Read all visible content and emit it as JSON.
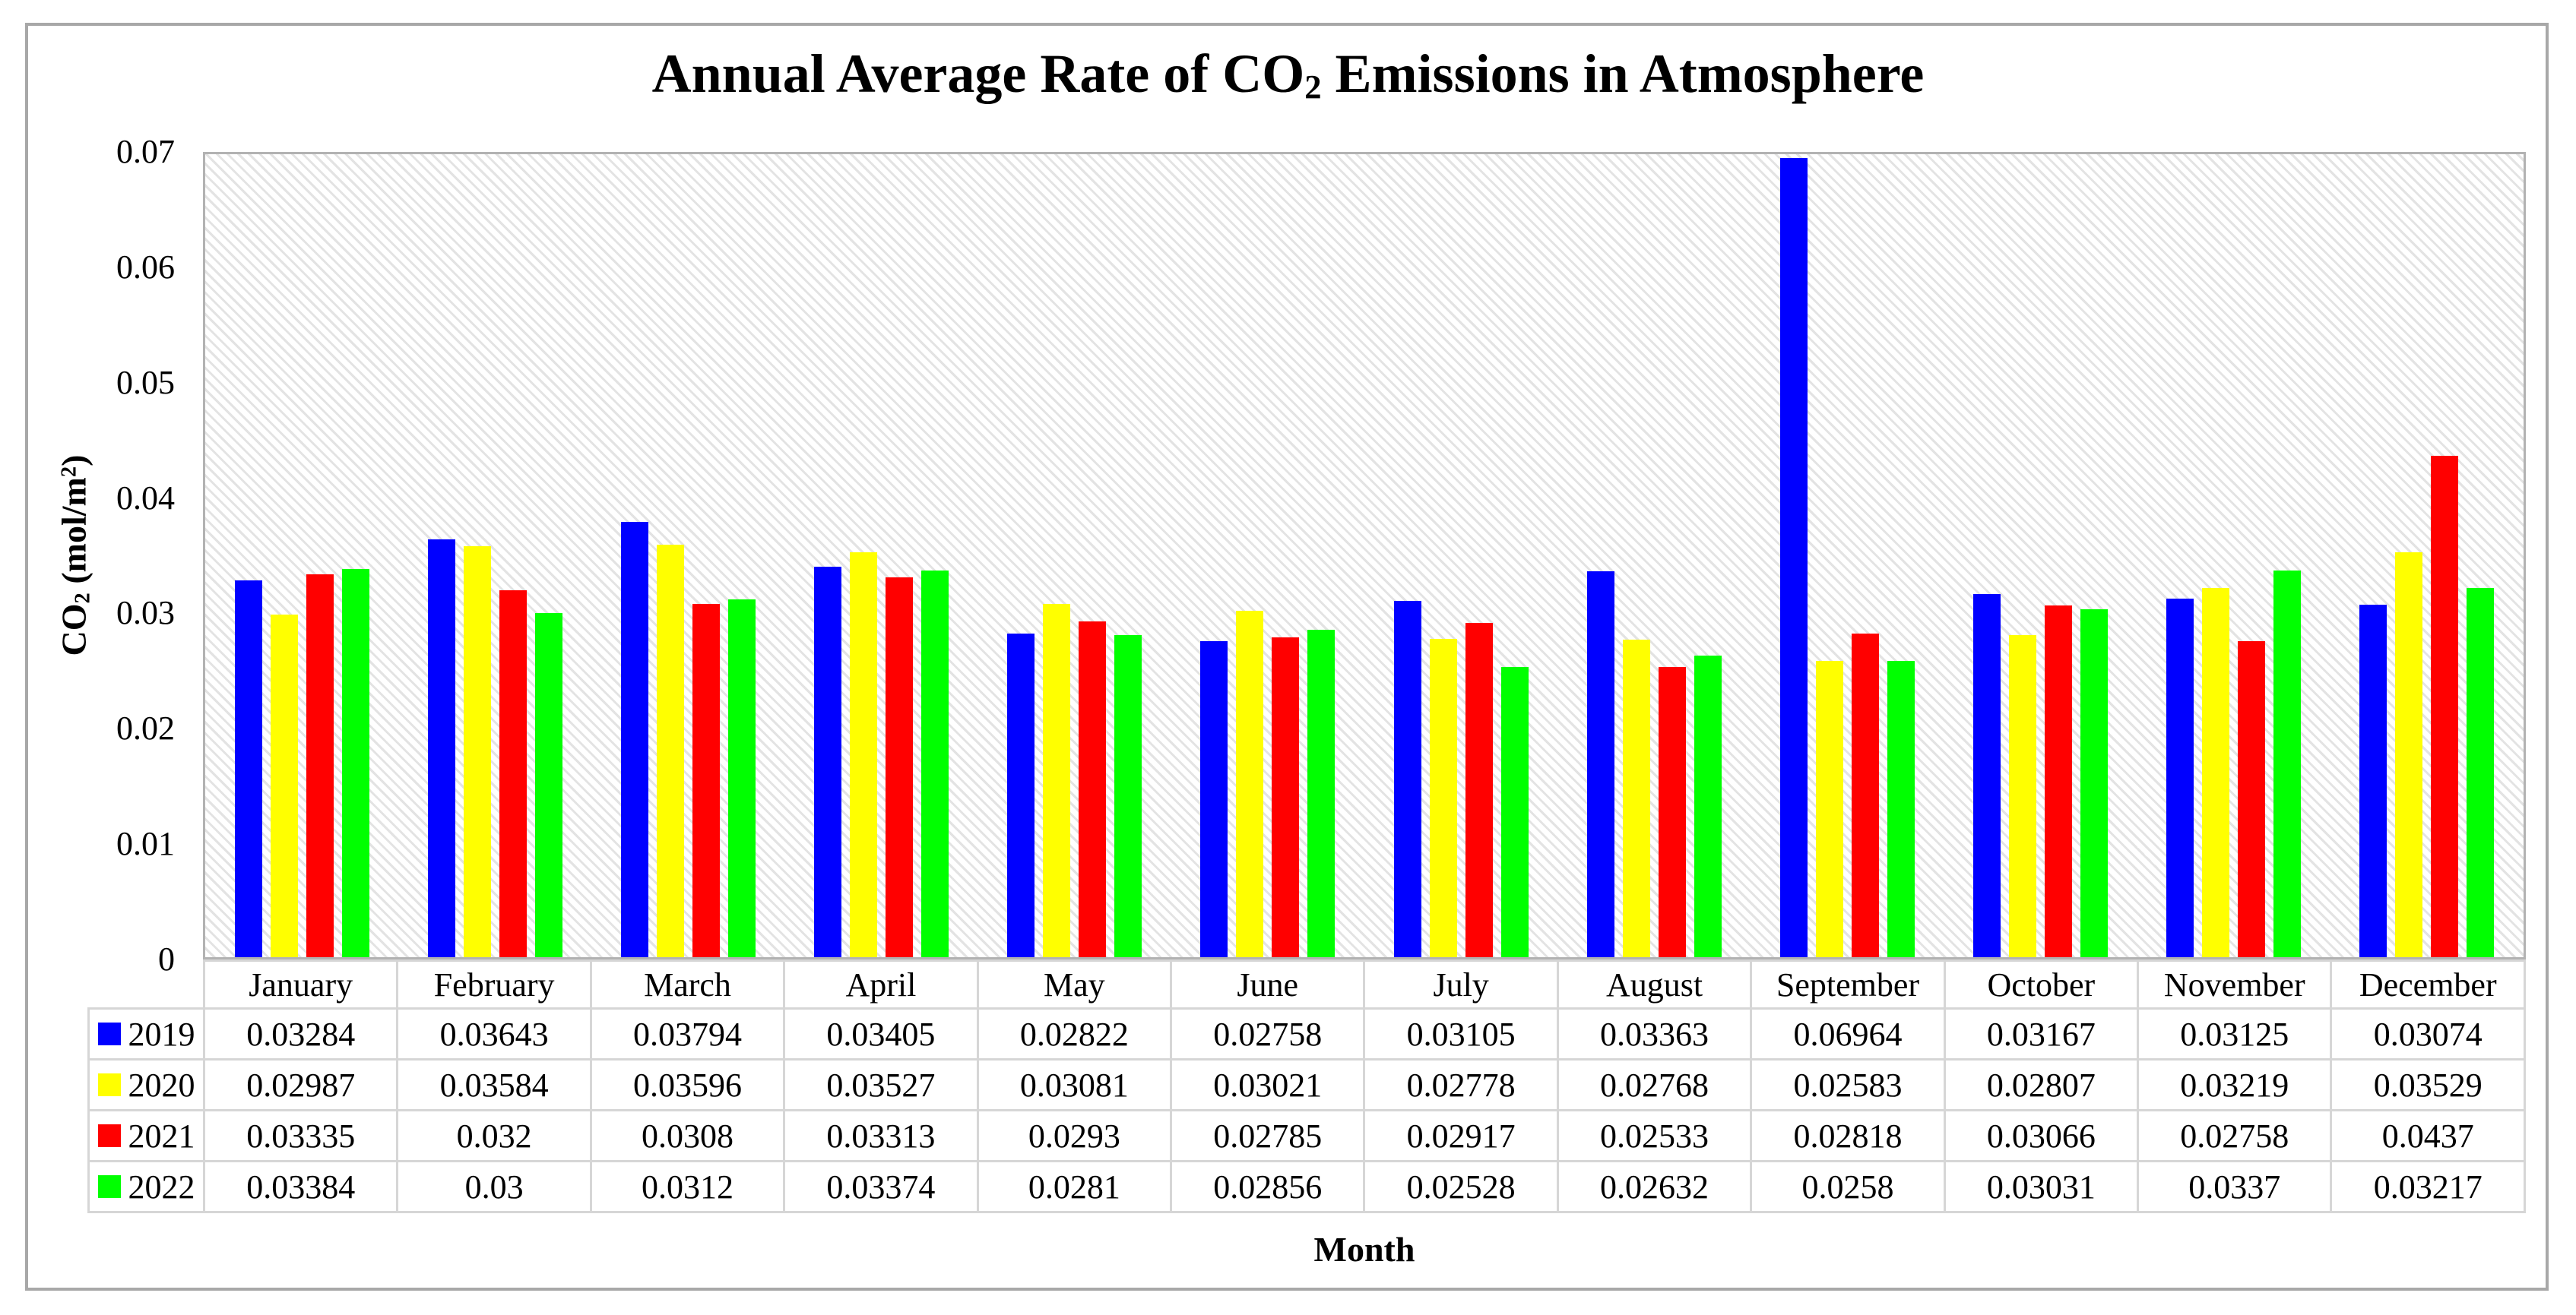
{
  "chart_data": {
    "type": "bar",
    "title": "Annual Average Rate of CO₂ Emissions in Atmosphere",
    "xlabel": "Month",
    "ylabel": "CO₂ (mol/m²)",
    "ylim": [
      0,
      0.07
    ],
    "grid": false,
    "plot_background": "light-diagonal-hatch",
    "legend_position": "data-table-left-keys",
    "categories": [
      "January",
      "February",
      "March",
      "April",
      "May",
      "June",
      "July",
      "August",
      "September",
      "October",
      "November",
      "December"
    ],
    "series": [
      {
        "name": "2019",
        "color": "#0000ff",
        "values": [
          0.03284,
          0.03643,
          0.03794,
          0.03405,
          0.02822,
          0.02758,
          0.03105,
          0.03363,
          0.06964,
          0.03167,
          0.03125,
          0.03074
        ]
      },
      {
        "name": "2020",
        "color": "#ffff00",
        "values": [
          0.02987,
          0.03584,
          0.03596,
          0.03527,
          0.03081,
          0.03021,
          0.02778,
          0.02768,
          0.02583,
          0.02807,
          0.03219,
          0.03529
        ]
      },
      {
        "name": "2021",
        "color": "#ff0000",
        "values": [
          0.03335,
          0.032,
          0.0308,
          0.03313,
          0.0293,
          0.02785,
          0.02917,
          0.02533,
          0.02818,
          0.03066,
          0.02758,
          0.0437
        ]
      },
      {
        "name": "2022",
        "color": "#00ff00",
        "values": [
          0.03384,
          0.03,
          0.0312,
          0.03374,
          0.0281,
          0.02856,
          0.02528,
          0.02632,
          0.0258,
          0.03031,
          0.0337,
          0.03217
        ]
      }
    ]
  },
  "ui": {
    "title_parts": {
      "p1": "Annual Average Rate of CO",
      "sub": "2",
      "p2": " Emissions in Atmosphere"
    },
    "y_axis": {
      "label_parts": {
        "p1": "CO",
        "sub": "2",
        "p2": " (mol/m",
        "sup": "2",
        "p3": ")"
      },
      "ticks": [
        "0",
        "0.01",
        "0.02",
        "0.03",
        "0.04",
        "0.05",
        "0.06",
        "0.07"
      ]
    },
    "x_axis_label": "Month",
    "table": {
      "rows": [
        {
          "label": "2019",
          "values": [
            "0.03284",
            "0.03643",
            "0.03794",
            "0.03405",
            "0.02822",
            "0.02758",
            "0.03105",
            "0.03363",
            "0.06964",
            "0.03167",
            "0.03125",
            "0.03074"
          ]
        },
        {
          "label": "2020",
          "values": [
            "0.02987",
            "0.03584",
            "0.03596",
            "0.03527",
            "0.03081",
            "0.03021",
            "0.02778",
            "0.02768",
            "0.02583",
            "0.02807",
            "0.03219",
            "0.03529"
          ]
        },
        {
          "label": "2021",
          "values": [
            "0.03335",
            "0.032",
            "0.0308",
            "0.03313",
            "0.0293",
            "0.02785",
            "0.02917",
            "0.02533",
            "0.02818",
            "0.03066",
            "0.02758",
            "0.0437"
          ]
        },
        {
          "label": "2022",
          "values": [
            "0.03384",
            "0.03",
            "0.0312",
            "0.03374",
            "0.0281",
            "0.02856",
            "0.02528",
            "0.02632",
            "0.0258",
            "0.03031",
            "0.0337",
            "0.03217"
          ]
        }
      ]
    },
    "colors": {
      "frame_border": "#a8a8a8",
      "plot_border": "#b2b2b2",
      "table_border": "#d6d6d6",
      "hatch_line": "#e3e3e3",
      "text": "#000000"
    }
  }
}
